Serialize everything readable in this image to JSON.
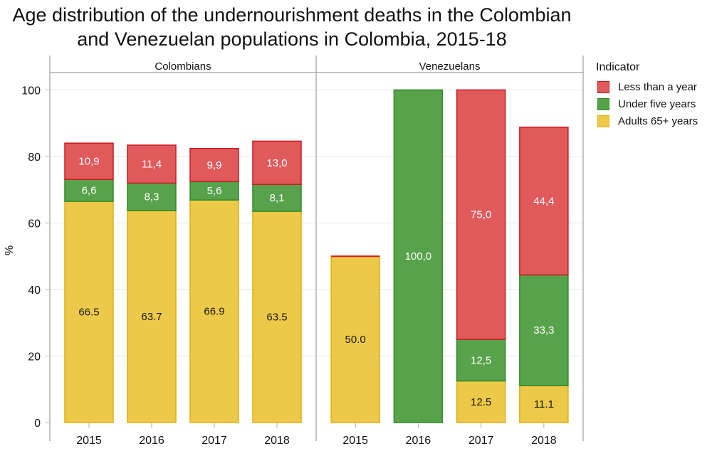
{
  "title_line1": "Age distribution of the undernourishment deaths in the Colombian",
  "title_line2": "and Venezuelan populations in Colombia, 2015-18",
  "colors": {
    "less_than_year": "#E05A5C",
    "less_than_year_border": "#CC1A20",
    "under_five": "#58A24C",
    "under_five_border": "#2E8B22",
    "adults_65": "#ECC948",
    "adults_65_border": "#E0AE10"
  },
  "legend": {
    "title": "Indicator",
    "items": [
      {
        "label": "Less than a year",
        "key": "less_than_year"
      },
      {
        "label": "Under five years",
        "key": "under_five"
      },
      {
        "label": "Adults 65+ years",
        "key": "adults_65"
      }
    ]
  },
  "chart_data": {
    "type": "bar",
    "stacked": true,
    "ylabel": "%",
    "ylim": [
      0,
      105
    ],
    "yticks": [
      0,
      20,
      40,
      60,
      80,
      100
    ],
    "grid": true,
    "legend_position": "right",
    "panels": [
      {
        "name": "Colombians",
        "categories": [
          "2015",
          "2016",
          "2017",
          "2018"
        ],
        "series": [
          {
            "name": "Adults 65+ years",
            "key": "adults_65",
            "values": [
              66.5,
              63.7,
              66.9,
              63.5
            ],
            "labels": [
              "66.5",
              "63.7",
              "66.9",
              "63.5"
            ]
          },
          {
            "name": "Under five years",
            "key": "under_five",
            "values": [
              6.6,
              8.3,
              5.6,
              8.1
            ],
            "labels": [
              "6,6",
              "8,3",
              "5,6",
              "8,1"
            ]
          },
          {
            "name": "Less than a year",
            "key": "less_than_year",
            "values": [
              10.9,
              11.4,
              9.9,
              13.0
            ],
            "labels": [
              "10,9",
              "11,4",
              "9,9",
              "13,0"
            ]
          }
        ]
      },
      {
        "name": "Venezuelans",
        "categories": [
          "2015",
          "2016",
          "2017",
          "2018"
        ],
        "series": [
          {
            "name": "Adults 65+ years",
            "key": "adults_65",
            "values": [
              50.0,
              0,
              12.5,
              11.1
            ],
            "labels": [
              "50.0",
              "",
              "12.5",
              "11.1"
            ]
          },
          {
            "name": "Under five years",
            "key": "under_five",
            "values": [
              0,
              100.0,
              12.5,
              33.3
            ],
            "labels": [
              "",
              "100,0",
              "12,5",
              "33,3"
            ]
          },
          {
            "name": "Less than a year",
            "key": "less_than_year",
            "values": [
              0,
              0,
              75.0,
              44.4
            ],
            "labels": [
              "",
              "",
              "75,0",
              "44,4"
            ]
          }
        ]
      }
    ]
  }
}
